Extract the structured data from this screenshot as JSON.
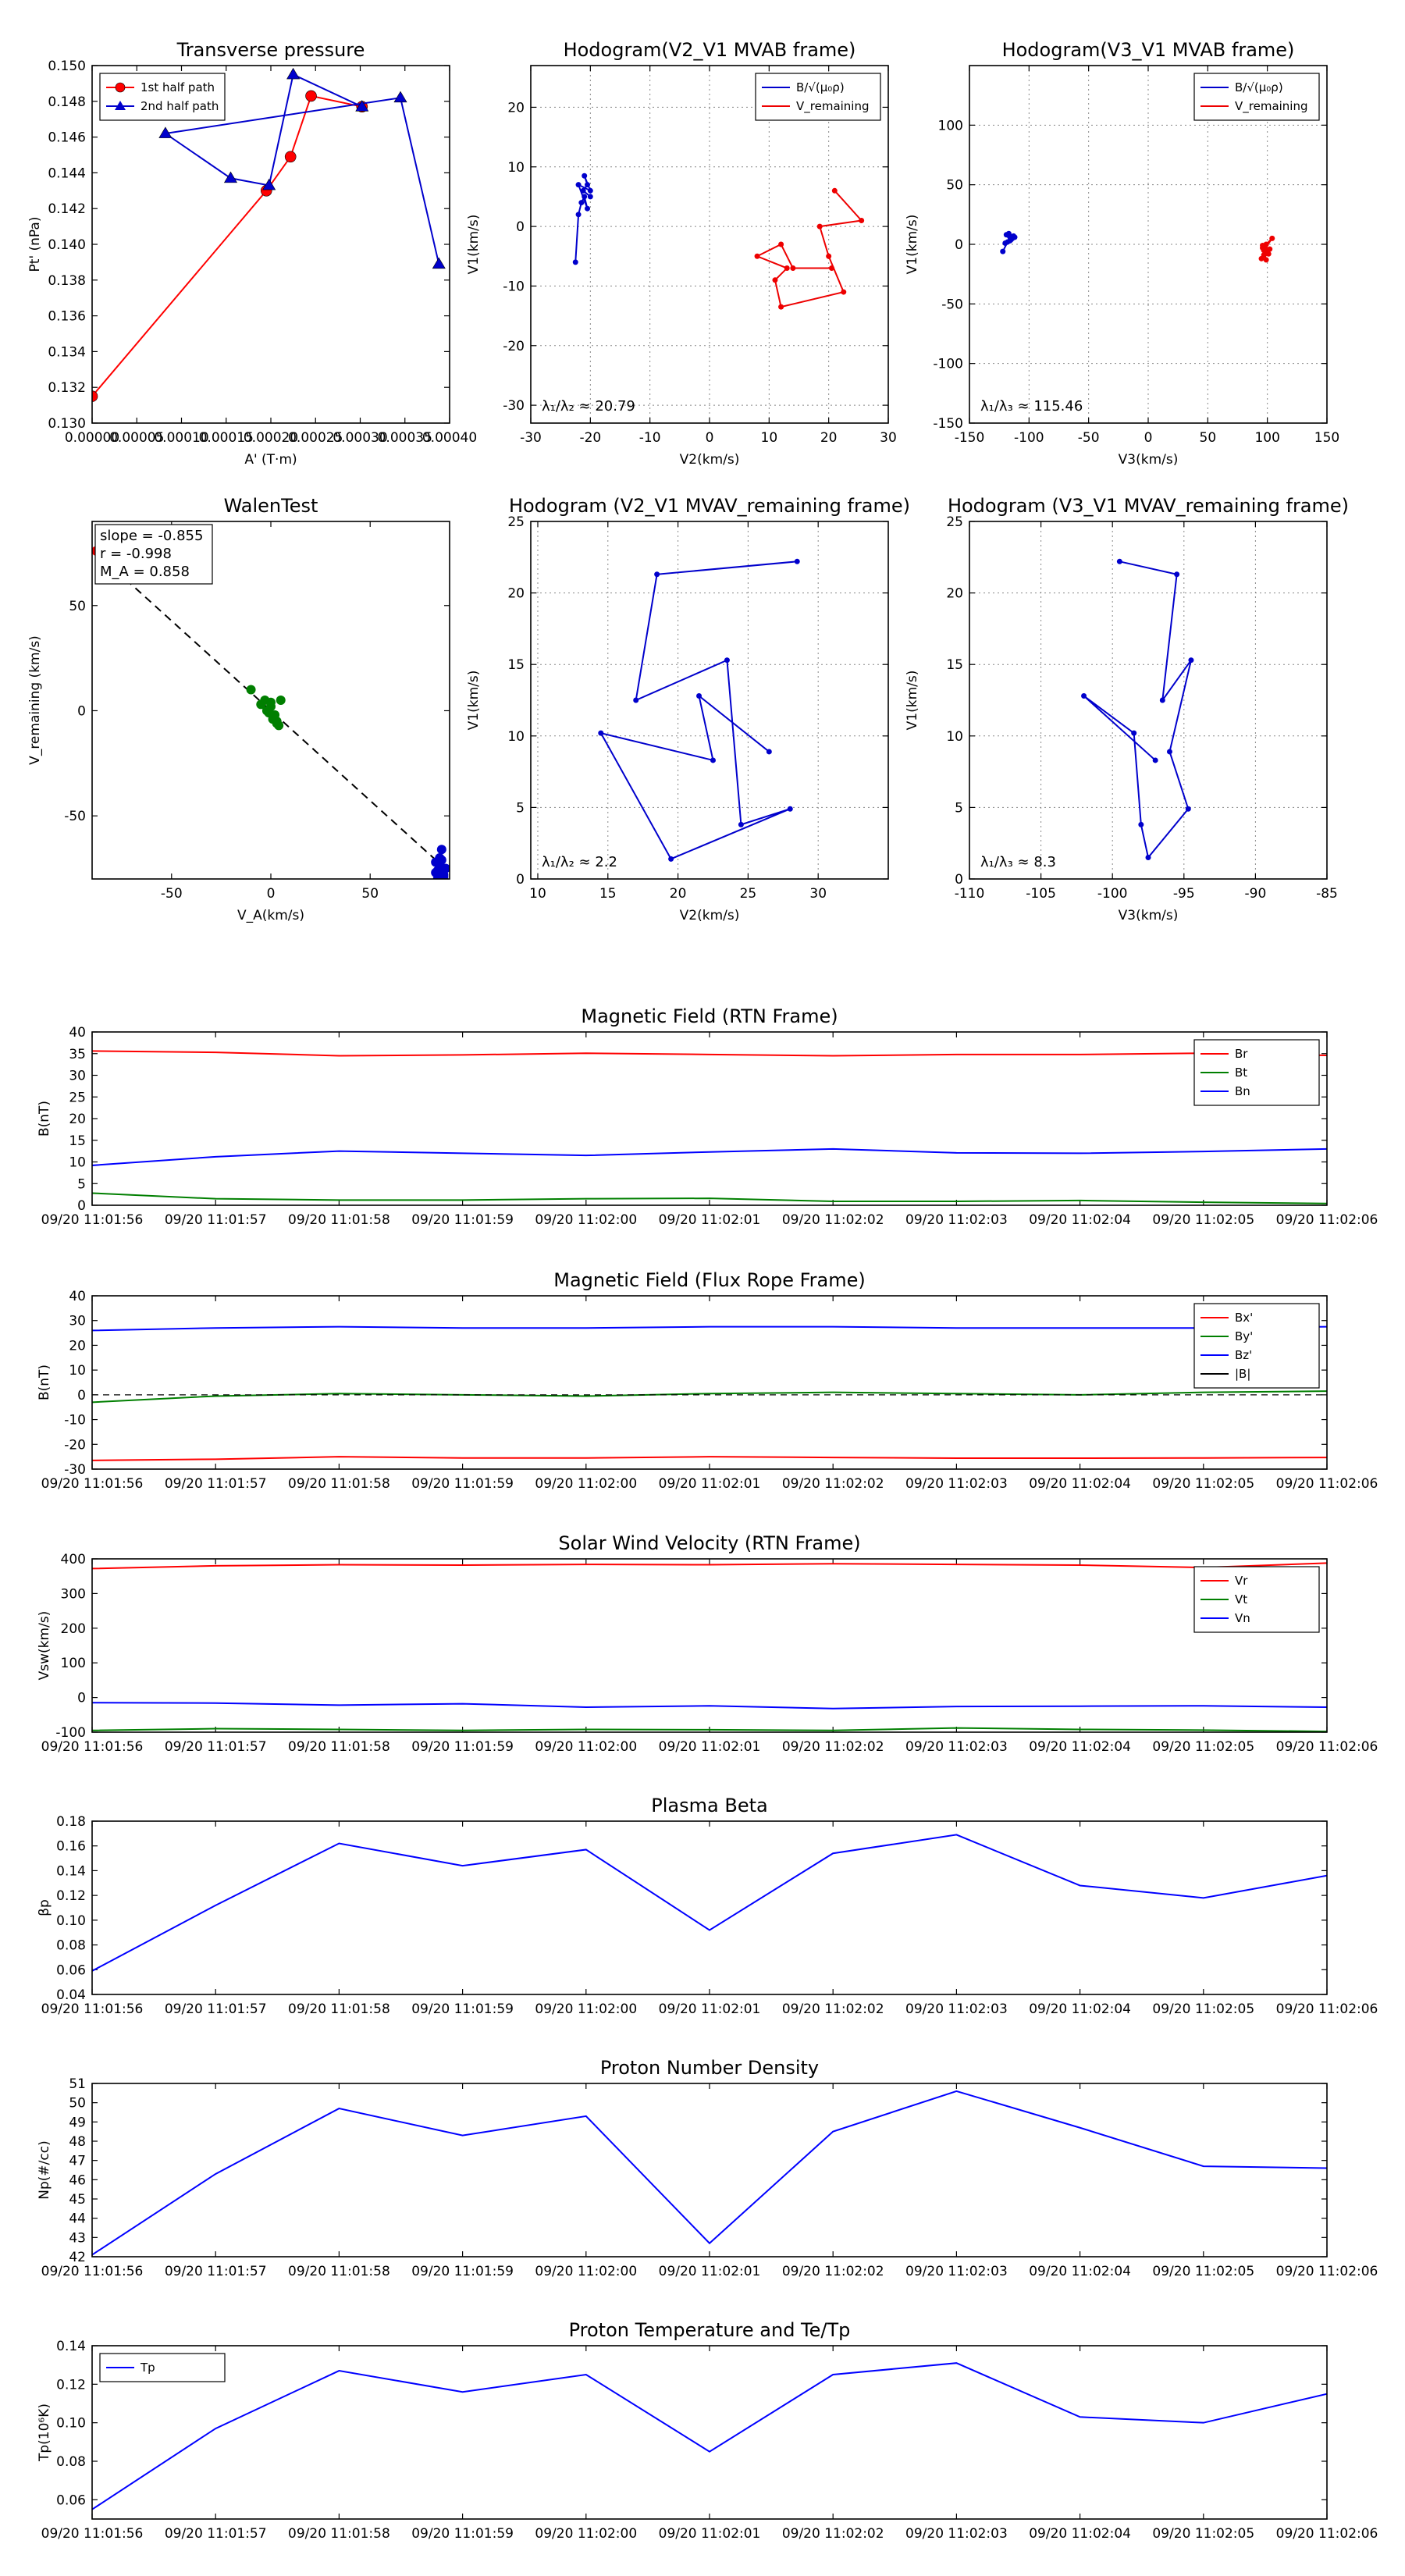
{
  "figure": {
    "background": "#ffffff"
  },
  "chart_data": [
    {
      "id": "pt",
      "type": "line",
      "title": "Transverse pressure",
      "xlabel": "A' (T·m)",
      "ylabel": "Pt' (nPa)",
      "xlim": [
        0,
        0.0004
      ],
      "ylim": [
        0.13,
        0.15
      ],
      "xticks": [
        0,
        5e-05,
        0.0001,
        0.00015,
        0.0002,
        0.00025,
        0.0003,
        0.00035,
        0.0004
      ],
      "xticklabels": [
        "0.00000",
        "0.00005",
        "0.00010",
        "0.00015",
        "0.00020",
        "0.00025",
        "0.00030",
        "0.00035",
        "0.00040"
      ],
      "yticks": [
        0.13,
        0.132,
        0.134,
        0.136,
        0.138,
        0.14,
        0.142,
        0.144,
        0.146,
        0.148,
        0.15
      ],
      "yticklabels": [
        "0.130",
        "0.132",
        "0.134",
        "0.136",
        "0.138",
        "0.140",
        "0.142",
        "0.144",
        "0.146",
        "0.148",
        "0.150"
      ],
      "legend": {
        "position": "top-left"
      },
      "series": [
        {
          "name": "1st half path",
          "color": "#ff0000",
          "marker": "circle",
          "x": [
            0.0,
            0.000195,
            0.000222,
            0.000245,
            0.000302
          ],
          "y": [
            0.1315,
            0.143,
            0.1449,
            0.1483,
            0.1477
          ]
        },
        {
          "name": "2nd half path",
          "color": "#0000cc",
          "marker": "triangle",
          "x": [
            0.000302,
            0.000225,
            0.000198,
            0.000155,
            8.2e-05,
            0.000345,
            0.000388
          ],
          "y": [
            0.1477,
            0.1495,
            0.1433,
            0.1437,
            0.1462,
            0.1482,
            0.1389
          ]
        }
      ]
    },
    {
      "id": "h21",
      "type": "line",
      "title": "Hodogram(V2_V1 MVAB frame)",
      "xlabel": "V2(km/s)",
      "ylabel": "V1(km/s)",
      "xlim": [
        -30,
        30
      ],
      "ylim": [
        -33,
        27
      ],
      "xticks": [
        -30,
        -20,
        -10,
        0,
        10,
        20,
        30
      ],
      "yticks": [
        -30,
        -20,
        -10,
        0,
        10,
        20
      ],
      "grid": true,
      "legend": {
        "position": "top-right"
      },
      "annotation": "λ₁/λ₂ ≈ 20.79",
      "series": [
        {
          "name": "B/√(μ₀ρ)",
          "color": "#0000cc",
          "x": [
            -22.5,
            -22,
            -21.5,
            -21,
            -20.5,
            -22,
            -20,
            -21,
            -20.5,
            -21.2,
            -20
          ],
          "y": [
            -6,
            2,
            4,
            5,
            3,
            7,
            6,
            8.5,
            7,
            6,
            5
          ]
        },
        {
          "name": "V_remaining",
          "color": "#ee0000",
          "x": [
            21,
            25.5,
            18.5,
            20,
            22.5,
            12,
            11,
            13,
            8,
            12,
            14,
            20.5
          ],
          "y": [
            6,
            1,
            0,
            -5,
            -11,
            -13.5,
            -9,
            -7,
            -5,
            -3,
            -7,
            -7
          ]
        }
      ]
    },
    {
      "id": "h31",
      "type": "line",
      "title": "Hodogram(V3_V1 MVAB frame)",
      "xlabel": "V3(km/s)",
      "ylabel": "V1(km/s)",
      "xlim": [
        -150,
        150
      ],
      "ylim": [
        -150,
        150
      ],
      "xticks": [
        -150,
        -100,
        -50,
        0,
        50,
        100,
        150
      ],
      "yticks": [
        -150,
        -100,
        -50,
        0,
        50,
        100
      ],
      "grid": true,
      "legend": {
        "position": "top-right"
      },
      "annotation": "λ₁/λ₃ ≈ 115.46",
      "series": [
        {
          "name": "B/√(μ₀ρ)",
          "color": "#0000cc",
          "x": [
            -122,
            -118,
            -115,
            -112,
            -119,
            -116,
            -113,
            -117,
            -114,
            -120,
            -115
          ],
          "y": [
            -6,
            2,
            4,
            6,
            8,
            3,
            7,
            9,
            5,
            1,
            6
          ]
        },
        {
          "name": "V_remaining",
          "color": "#ee0000",
          "x": [
            97,
            104,
            99,
            96,
            101,
            95,
            100,
            98,
            102,
            97,
            99,
            96
          ],
          "y": [
            -5,
            5,
            0,
            -3,
            -8,
            -12,
            -6,
            -2,
            -4,
            -9,
            -13,
            -1
          ]
        }
      ]
    },
    {
      "id": "walen",
      "type": "scatter",
      "title": "WalenTest",
      "xlabel": "V_A(km/s)",
      "ylabel": "V_remaining (km/s)",
      "xlim": [
        -90,
        90
      ],
      "ylim": [
        -80,
        90
      ],
      "xticks": [
        -50,
        0,
        50
      ],
      "yticks": [
        -50,
        0,
        50
      ],
      "annotations": [
        "slope = -0.855",
        "r = -0.998",
        "M_A = 0.858"
      ],
      "fit": {
        "slope": -0.855,
        "color": "#000000",
        "style": "dashed",
        "x": [
          -88,
          88
        ]
      },
      "series": [
        {
          "name": "red",
          "color": "#ee0000",
          "x": [
            -88
          ],
          "y": [
            76
          ]
        },
        {
          "name": "green",
          "color": "#007f00",
          "x": [
            -10,
            -5,
            -3,
            0,
            2,
            3,
            5,
            -2,
            1,
            4,
            0,
            -1,
            3
          ],
          "y": [
            10,
            3,
            5,
            2,
            -2,
            -5,
            5,
            0,
            -4,
            -7,
            4,
            -1,
            -6
          ]
        },
        {
          "name": "blue",
          "color": "#0000cc",
          "x": [
            83,
            85,
            84,
            86,
            87,
            85,
            84,
            88,
            86,
            87,
            83,
            85
          ],
          "y": [
            -72,
            -70,
            -76,
            -66,
            -78,
            -74,
            -80,
            -75,
            -71,
            -79,
            -77,
            -73
          ]
        }
      ]
    },
    {
      "id": "hr21",
      "type": "line",
      "title": "Hodogram (V2_V1 MVAV_remaining frame)",
      "xlabel": "V2(km/s)",
      "ylabel": "V1(km/s)",
      "xlim": [
        9.5,
        35
      ],
      "ylim": [
        0,
        25
      ],
      "xticks": [
        10,
        15,
        20,
        25,
        30
      ],
      "yticks": [
        0,
        5,
        10,
        15,
        20,
        25
      ],
      "grid": true,
      "annotation": "λ₁/λ₂ ≈ 2.2",
      "series": [
        {
          "name": "",
          "color": "#0000cc",
          "x": [
            28.5,
            18.5,
            17,
            23.5,
            24.5,
            28,
            19.5,
            14.5,
            22.5,
            21.5,
            26.5
          ],
          "y": [
            22.2,
            21.3,
            12.5,
            15.3,
            3.8,
            4.9,
            1.4,
            10.2,
            8.3,
            12.8,
            8.9
          ]
        }
      ]
    },
    {
      "id": "hr31",
      "type": "line",
      "title": "Hodogram (V3_V1 MVAV_remaining frame)",
      "xlabel": "V3(km/s)",
      "ylabel": "V1(km/s)",
      "xlim": [
        -110,
        -85
      ],
      "ylim": [
        0,
        25
      ],
      "xticks": [
        -110,
        -105,
        -100,
        -95,
        -90,
        -85
      ],
      "yticks": [
        0,
        5,
        10,
        15,
        20,
        25
      ],
      "grid": true,
      "annotation": "λ₁/λ₃ ≈ 8.3",
      "series": [
        {
          "name": "",
          "color": "#0000cc",
          "x": [
            -99.5,
            -95.5,
            -96.5,
            -94.5,
            -96,
            -94.7,
            -97.5,
            -98,
            -98.5,
            -102,
            -97
          ],
          "y": [
            22.2,
            21.3,
            12.5,
            15.3,
            8.9,
            4.9,
            1.5,
            3.8,
            10.2,
            12.8,
            8.3
          ]
        }
      ]
    },
    {
      "id": "brtn",
      "type": "line",
      "title": "Magnetic Field (RTN Frame)",
      "ylabel": "B(nT)",
      "categories": [
        "09/20 11:01:56",
        "09/20 11:01:57",
        "09/20 11:01:58",
        "09/20 11:01:59",
        "09/20 11:02:00",
        "09/20 11:02:01",
        "09/20 11:02:02",
        "09/20 11:02:03",
        "09/20 11:02:04",
        "09/20 11:02:05",
        "09/20 11:02:06"
      ],
      "ylim": [
        0,
        40
      ],
      "yticks": [
        0,
        5,
        10,
        15,
        20,
        25,
        30,
        35,
        40
      ],
      "legend": {
        "position": "top-right"
      },
      "series": [
        {
          "name": "Br",
          "color": "#ff0000",
          "values": [
            35.6,
            35.3,
            34.5,
            34.7,
            35.1,
            34.8,
            34.5,
            34.8,
            34.8,
            35.1,
            34.6
          ]
        },
        {
          "name": "Bt",
          "color": "#007f00",
          "values": [
            2.8,
            1.5,
            1.2,
            1.2,
            1.5,
            1.6,
            0.9,
            0.9,
            1.1,
            0.7,
            0.4
          ]
        },
        {
          "name": "Bn",
          "color": "#0000ff",
          "values": [
            9.2,
            11.2,
            12.5,
            12.0,
            11.5,
            12.3,
            13.0,
            12.1,
            12.0,
            12.4,
            13.0
          ]
        }
      ]
    },
    {
      "id": "bflux",
      "type": "line",
      "title": "Magnetic Field (Flux Rope Frame)",
      "ylabel": "B(nT)",
      "categories": [
        "09/20 11:01:56",
        "09/20 11:01:57",
        "09/20 11:01:58",
        "09/20 11:01:59",
        "09/20 11:02:00",
        "09/20 11:02:01",
        "09/20 11:02:02",
        "09/20 11:02:03",
        "09/20 11:02:04",
        "09/20 11:02:05",
        "09/20 11:02:06"
      ],
      "ylim": [
        -30,
        40
      ],
      "yticks": [
        -30,
        -20,
        -10,
        0,
        10,
        20,
        30,
        40
      ],
      "legend": {
        "position": "top-right"
      },
      "series": [
        {
          "name": "Bx'",
          "color": "#ff0000",
          "values": [
            -26.5,
            -26,
            -25,
            -25.5,
            -25.5,
            -25,
            -25.3,
            -25.6,
            -25.6,
            -25.5,
            -25.3
          ]
        },
        {
          "name": "By'",
          "color": "#007f00",
          "values": [
            -3,
            -0.5,
            0.5,
            0,
            -0.5,
            0.5,
            1,
            0.5,
            0,
            1,
            1.5
          ]
        },
        {
          "name": "Bz'",
          "color": "#0000ff",
          "values": [
            26,
            27,
            27.5,
            27,
            27,
            27.5,
            27.5,
            27,
            27,
            27,
            27.5
          ]
        },
        {
          "name": "|B|",
          "color": "#000000",
          "dashed": true,
          "values": [
            0,
            0,
            0,
            0,
            0,
            0,
            0,
            0,
            0,
            0,
            0
          ]
        }
      ]
    },
    {
      "id": "vsw",
      "type": "line",
      "title": "Solar Wind Velocity (RTN Frame)",
      "ylabel": "Vsw(km/s)",
      "categories": [
        "09/20 11:01:56",
        "09/20 11:01:57",
        "09/20 11:01:58",
        "09/20 11:01:59",
        "09/20 11:02:00",
        "09/20 11:02:01",
        "09/20 11:02:02",
        "09/20 11:02:03",
        "09/20 11:02:04",
        "09/20 11:02:05",
        "09/20 11:02:06"
      ],
      "ylim": [
        -100,
        400
      ],
      "yticks": [
        -100,
        0,
        100,
        200,
        300,
        400
      ],
      "legend": {
        "position": "top-right"
      },
      "series": [
        {
          "name": "Vr",
          "color": "#ff0000",
          "values": [
            372,
            380,
            383,
            382,
            384,
            383,
            386,
            384,
            382,
            375,
            388
          ]
        },
        {
          "name": "Vt",
          "color": "#007f00",
          "values": [
            -95,
            -90,
            -92,
            -95,
            -92,
            -93,
            -95,
            -88,
            -92,
            -94,
            -98
          ]
        },
        {
          "name": "Vn",
          "color": "#0000ff",
          "values": [
            -15,
            -16,
            -22,
            -18,
            -28,
            -24,
            -32,
            -26,
            -25,
            -24,
            -28
          ]
        }
      ]
    },
    {
      "id": "beta",
      "type": "line",
      "title": "Plasma Beta",
      "ylabel": "βp",
      "categories": [
        "09/20 11:01:56",
        "09/20 11:01:57",
        "09/20 11:01:58",
        "09/20 11:01:59",
        "09/20 11:02:00",
        "09/20 11:02:01",
        "09/20 11:02:02",
        "09/20 11:02:03",
        "09/20 11:02:04",
        "09/20 11:02:05",
        "09/20 11:02:06"
      ],
      "ylim": [
        0.04,
        0.18
      ],
      "yticks": [
        0.04,
        0.06,
        0.08,
        0.1,
        0.12,
        0.14,
        0.16,
        0.18
      ],
      "yticklabels": [
        "0.04",
        "0.06",
        "0.08",
        "0.10",
        "0.12",
        "0.14",
        "0.16",
        "0.18"
      ],
      "series": [
        {
          "name": "",
          "color": "#0000ff",
          "values": [
            0.059,
            0.112,
            0.162,
            0.144,
            0.157,
            0.092,
            0.154,
            0.169,
            0.128,
            0.118,
            0.136
          ]
        }
      ]
    },
    {
      "id": "np",
      "type": "line",
      "title": "Proton Number Density",
      "ylabel": "Np(#/cc)",
      "categories": [
        "09/20 11:01:56",
        "09/20 11:01:57",
        "09/20 11:01:58",
        "09/20 11:01:59",
        "09/20 11:02:00",
        "09/20 11:02:01",
        "09/20 11:02:02",
        "09/20 11:02:03",
        "09/20 11:02:04",
        "09/20 11:02:05",
        "09/20 11:02:06"
      ],
      "ylim": [
        42,
        51
      ],
      "yticks": [
        42,
        43,
        44,
        45,
        46,
        47,
        48,
        49,
        50,
        51
      ],
      "series": [
        {
          "name": "",
          "color": "#0000ff",
          "values": [
            42.1,
            46.3,
            49.7,
            48.3,
            49.3,
            42.7,
            48.5,
            50.6,
            48.7,
            46.7,
            46.6
          ]
        }
      ]
    },
    {
      "id": "tp",
      "type": "line",
      "title": "Proton Temperature and Te/Tp",
      "ylabel": "Tp(10⁶K)",
      "categories": [
        "09/20 11:01:56",
        "09/20 11:01:57",
        "09/20 11:01:58",
        "09/20 11:01:59",
        "09/20 11:02:00",
        "09/20 11:02:01",
        "09/20 11:02:02",
        "09/20 11:02:03",
        "09/20 11:02:04",
        "09/20 11:02:05",
        "09/20 11:02:06"
      ],
      "ylim": [
        0.05,
        0.14
      ],
      "yticks": [
        0.06,
        0.08,
        0.1,
        0.12,
        0.14
      ],
      "yticklabels": [
        "0.06",
        "0.08",
        "0.10",
        "0.12",
        "0.14"
      ],
      "legend": {
        "position": "top-left"
      },
      "series": [
        {
          "name": "Tp",
          "color": "#0000ff",
          "values": [
            0.055,
            0.097,
            0.127,
            0.116,
            0.125,
            0.085,
            0.125,
            0.131,
            0.103,
            0.1,
            0.115
          ]
        }
      ]
    }
  ]
}
